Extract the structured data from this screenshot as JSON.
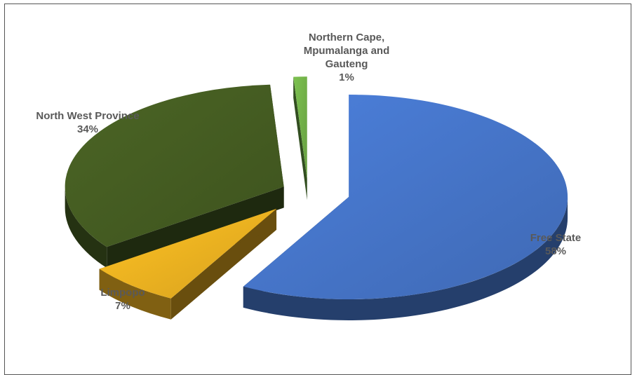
{
  "chart_data": {
    "type": "pie",
    "style": "3d-exploded",
    "title": "",
    "slices": [
      {
        "label": "Free State",
        "value": 58,
        "value_label": "58%",
        "color": "#4472c4"
      },
      {
        "label": "Limpopo",
        "value": 7,
        "value_label": "7%",
        "color": "#e9ae20"
      },
      {
        "label": "North West Province",
        "value": 34,
        "value_label": "34%",
        "color": "#435a21"
      },
      {
        "label": "Northern Cape, Mpumalanga and Gauteng",
        "label_lines": [
          "Northern Cape,",
          "Mpumalanga and",
          "Gauteng"
        ],
        "value": 1,
        "value_label": "1%",
        "color": "#70ad47"
      }
    ],
    "legend": "none"
  }
}
